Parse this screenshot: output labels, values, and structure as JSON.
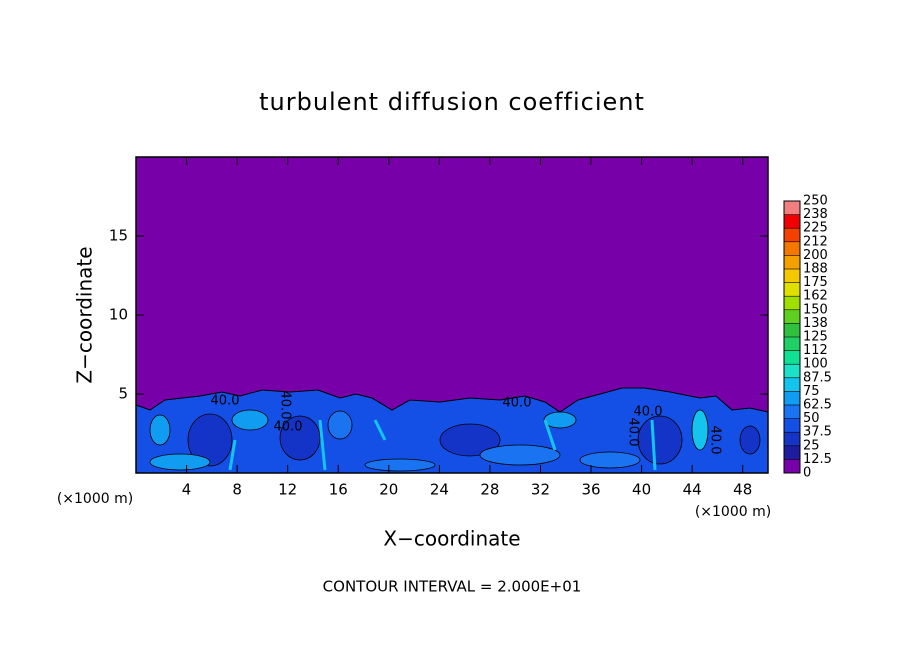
{
  "chart_data": {
    "type": "contour",
    "title": "turbulent diffusion coefficient",
    "x_label": "X−coordinate",
    "y_label": "Z−coordinate",
    "x_unit_label": "(×1000 m)",
    "footer": "CONTOUR INTERVAL = 2.000E+01",
    "xlim": [
      0,
      50
    ],
    "xticks": [
      4,
      8,
      12,
      16,
      20,
      24,
      28,
      32,
      36,
      40,
      44,
      48
    ],
    "ylim": [
      0,
      20
    ],
    "yticks": [
      5,
      10,
      15
    ],
    "contour_labels": [
      "40.0",
      "40.0",
      "40.0",
      "40.0",
      "40.0",
      "40.0",
      "40.0"
    ],
    "colorbar": {
      "ticks": [
        0,
        12.5,
        25,
        37.5,
        50,
        62.5,
        75,
        87.5,
        100,
        {
          "value": 112.5,
          "label": "112"
        },
        125,
        {
          "value": 137.5,
          "label": "138"
        },
        150,
        {
          "value": 162.5,
          "label": "162"
        },
        175,
        {
          "value": 187.5,
          "label": "188"
        },
        200,
        {
          "value": 212.5,
          "label": "212"
        },
        225,
        {
          "value": 237.5,
          "label": "238"
        },
        250
      ],
      "colors": [
        "#7800a8",
        "#1c1c9c",
        "#1434c8",
        "#1450e6",
        "#1a74f2",
        "#109cf0",
        "#14c4ec",
        "#1ce0c8",
        "#10e094",
        "#20d064",
        "#30c040",
        "#60d020",
        "#a0e000",
        "#e0e000",
        "#f4c800",
        "#f4a000",
        "#f47800",
        "#f44000",
        "#f00000",
        "#f08080"
      ]
    }
  }
}
